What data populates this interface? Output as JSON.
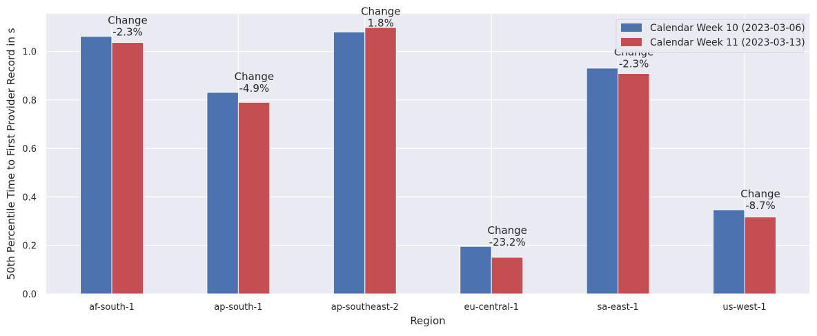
{
  "chart_data": {
    "type": "bar",
    "xlabel": "Region",
    "ylabel": "50th Percentile Time to First Provider Record in s",
    "categories": [
      "af-south-1",
      "ap-south-1",
      "ap-southeast-2",
      "eu-central-1",
      "sa-east-1",
      "us-west-1"
    ],
    "series": [
      {
        "name": "Calendar Week 10 (2023-03-06)",
        "color": "#4c72b0",
        "values": [
          1.062,
          0.831,
          1.08,
          0.196,
          0.931,
          0.347
        ]
      },
      {
        "name": "Calendar Week 11 (2023-03-13)",
        "color": "#c44e52",
        "values": [
          1.037,
          0.79,
          1.099,
          0.151,
          0.909,
          0.317
        ]
      }
    ],
    "annotations": [
      {
        "category": "af-south-1",
        "label": "Change",
        "value": "-2.3%"
      },
      {
        "category": "ap-south-1",
        "label": "Change",
        "value": "-4.9%"
      },
      {
        "category": "ap-southeast-2",
        "label": "Change",
        "value": "1.8%"
      },
      {
        "category": "eu-central-1",
        "label": "Change",
        "value": "-23.2%"
      },
      {
        "category": "sa-east-1",
        "label": "Change",
        "value": "-2.3%"
      },
      {
        "category": "us-west-1",
        "label": "Change",
        "value": "-8.7%"
      }
    ],
    "ylim": [
      0,
      1.155
    ],
    "yticks": [
      "0.0",
      "0.2",
      "0.4",
      "0.6",
      "0.8",
      "1.0"
    ],
    "ytick_values": [
      0,
      0.2,
      0.4,
      0.6,
      0.8,
      1.0
    ],
    "grid": true,
    "legend_position": "top-right",
    "background": "#eaeaf2"
  }
}
